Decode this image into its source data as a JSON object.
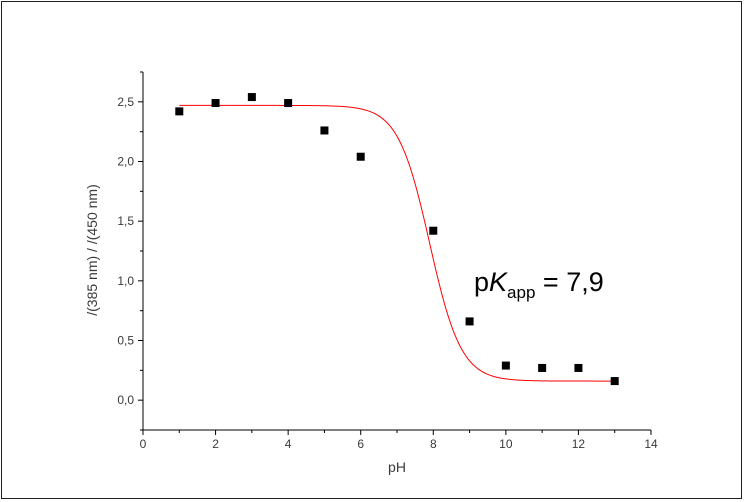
{
  "chart_data": {
    "type": "scatter",
    "xlabel": "pH",
    "ylabel": "/(385 nm) / /(450 nm)",
    "xlim": [
      0,
      14
    ],
    "ylim": [
      -0.25,
      2.75
    ],
    "x_ticks": [
      "0",
      "2",
      "4",
      "6",
      "8",
      "10",
      "12",
      "14"
    ],
    "y_ticks": [
      "0,0",
      "0,5",
      "1,0",
      "1,5",
      "2,0",
      "2,5"
    ],
    "x_tick_values": [
      0,
      2,
      4,
      6,
      8,
      10,
      12,
      14
    ],
    "y_tick_values": [
      0,
      0.5,
      1.0,
      1.5,
      2.0,
      2.5
    ],
    "series": [
      {
        "kind": "points",
        "x": [
          1,
          2,
          3,
          4,
          5,
          6,
          8,
          9,
          10,
          11,
          12,
          13
        ],
        "y": [
          2.42,
          2.49,
          2.54,
          2.49,
          2.26,
          2.04,
          1.42,
          0.66,
          0.29,
          0.27,
          0.27,
          0.16
        ],
        "color": "#000000"
      },
      {
        "kind": "fit",
        "model": "sigmoid",
        "top": 2.47,
        "bottom": 0.16,
        "pKa": 7.9,
        "x_range": [
          1,
          13
        ],
        "color": "#ff0000"
      }
    ],
    "annotation": {
      "prefix": "p",
      "italic": "K",
      "subscript": "app",
      "suffix": " = 7,9"
    },
    "grid": false
  }
}
